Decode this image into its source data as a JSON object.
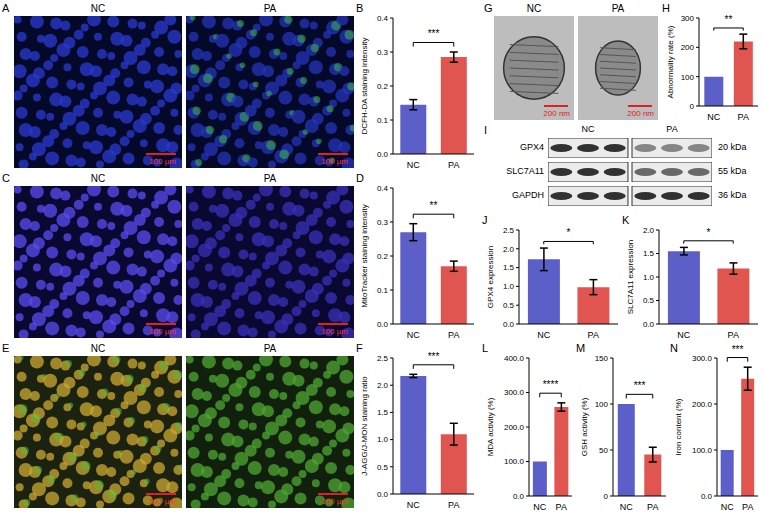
{
  "chart_data": [
    {
      "panel": "B",
      "type": "bar",
      "categories": [
        "NC",
        "PA"
      ],
      "values": [
        0.145,
        0.285
      ],
      "errors": [
        0.015,
        0.015
      ],
      "colors": [
        "#5b5fc7",
        "#e05550"
      ],
      "ylabel": "DCFH-DA staining intensity",
      "ylim": [
        0,
        0.4
      ],
      "yticks": [
        {
          "value": 0,
          "label": "0.0"
        },
        0.1,
        0.2,
        0.3,
        0.4
      ],
      "significance": "***"
    },
    {
      "panel": "D",
      "type": "bar",
      "categories": [
        "NC",
        "PA"
      ],
      "values": [
        0.27,
        0.17
      ],
      "errors": [
        0.025,
        0.015
      ],
      "colors": [
        "#5b5fc7",
        "#e05550"
      ],
      "ylabel": "MitoTracker staining intensity",
      "ylim": [
        0,
        0.4
      ],
      "yticks": [
        {
          "value": 0,
          "label": "0.0"
        },
        0.1,
        0.2,
        0.3,
        0.4
      ],
      "significance": "**"
    },
    {
      "panel": "F",
      "type": "bar",
      "categories": [
        "NC",
        "PA"
      ],
      "values": [
        2.17,
        1.1
      ],
      "errors": [
        0.03,
        0.2
      ],
      "colors": [
        "#5b5fc7",
        "#e05550"
      ],
      "ylabel": "J-AGG/J-MON staining ratio",
      "ylim": [
        0,
        2.5
      ],
      "yticks": [
        {
          "value": 0,
          "label": "0.0"
        },
        0.5,
        {
          "value": 1,
          "label": "1.0"
        },
        1.5,
        {
          "value": 2,
          "label": "2.0"
        },
        2.5
      ],
      "significance": "***"
    },
    {
      "panel": "H",
      "type": "bar",
      "categories": [
        "NC",
        "PA"
      ],
      "values": [
        100,
        220
      ],
      "errors": [
        0,
        25
      ],
      "colors": [
        "#5b5fc7",
        "#e05550"
      ],
      "ylabel": "Abnormality rate (%)",
      "ylim": [
        0,
        300
      ],
      "yticks": [
        0,
        100,
        200,
        300
      ],
      "significance": "**"
    },
    {
      "panel": "J",
      "type": "bar",
      "categories": [
        "NC",
        "PA"
      ],
      "values": [
        1.72,
        0.98
      ],
      "errors": [
        0.3,
        0.2
      ],
      "colors": [
        "#5b5fc7",
        "#e05550"
      ],
      "ylabel": "GPX4 expression",
      "ylim": [
        0,
        2.5
      ],
      "yticks": [
        {
          "value": 0,
          "label": "0.0"
        },
        0.5,
        {
          "value": 1,
          "label": "1.0"
        },
        1.5,
        {
          "value": 2,
          "label": "2.0"
        },
        2.5
      ],
      "significance": "*"
    },
    {
      "panel": "K",
      "type": "bar",
      "categories": [
        "NC",
        "PA"
      ],
      "values": [
        1.55,
        1.18
      ],
      "errors": [
        0.08,
        0.12
      ],
      "colors": [
        "#5b5fc7",
        "#e05550"
      ],
      "ylabel": "SLC7A11 expression",
      "ylim": [
        0,
        2
      ],
      "yticks": [
        {
          "value": 0,
          "label": "0.0"
        },
        0.5,
        {
          "value": 1,
          "label": "1.0"
        },
        1.5,
        {
          "value": 2,
          "label": "2.0"
        }
      ],
      "significance": "*"
    },
    {
      "panel": "L",
      "type": "bar",
      "categories": [
        "NC",
        "PA"
      ],
      "values": [
        100,
        258
      ],
      "errors": [
        0,
        12
      ],
      "colors": [
        "#5b5fc7",
        "#e05550"
      ],
      "ylabel": "MDA activity (%)",
      "ylim": [
        0,
        400
      ],
      "yticks": [
        {
          "value": 0,
          "label": "0.0"
        },
        {
          "value": 100,
          "label": "100.0"
        },
        {
          "value": 200,
          "label": "200.0"
        },
        {
          "value": 300,
          "label": "300.0"
        },
        {
          "value": 400,
          "label": "400.0"
        }
      ],
      "significance": "****"
    },
    {
      "panel": "M",
      "type": "bar",
      "categories": [
        "NC",
        "PA"
      ],
      "values": [
        100,
        45
      ],
      "errors": [
        0,
        8
      ],
      "colors": [
        "#5b5fc7",
        "#e05550"
      ],
      "ylabel": "GSH activity (%)",
      "ylim": [
        0,
        150
      ],
      "yticks": [
        0,
        50,
        100,
        150
      ],
      "significance": "***"
    },
    {
      "panel": "N",
      "type": "bar",
      "categories": [
        "NC",
        "PA"
      ],
      "values": [
        100,
        255
      ],
      "errors": [
        0,
        25
      ],
      "colors": [
        "#5b5fc7",
        "#e05550"
      ],
      "ylabel": "Iron content (%)",
      "ylim": [
        0,
        300
      ],
      "yticks": [
        {
          "value": 0,
          "label": "0.0"
        },
        {
          "value": 100,
          "label": "100.0"
        },
        {
          "value": 200,
          "label": "200.0"
        },
        {
          "value": 300,
          "label": "300.0"
        }
      ],
      "significance": "***"
    }
  ],
  "image_panels": [
    {
      "panel": "A",
      "images": [
        {
          "title": "NC",
          "scale_bar": "100 μm"
        },
        {
          "title": "PA",
          "scale_bar": "100 μm"
        }
      ]
    },
    {
      "panel": "C",
      "images": [
        {
          "title": "NC",
          "scale_bar": "100 μm"
        },
        {
          "title": "PA",
          "scale_bar": "100 μm"
        }
      ]
    },
    {
      "panel": "E",
      "images": [
        {
          "title": "NC",
          "scale_bar": "100 μm"
        },
        {
          "title": "PA",
          "scale_bar": "100 μm"
        }
      ]
    },
    {
      "panel": "G",
      "images": [
        {
          "title": "NC",
          "scale_bar": "200 nm"
        },
        {
          "title": "PA",
          "scale_bar": "200 nm"
        }
      ]
    }
  ],
  "blot": {
    "panel": "I",
    "columns": [
      "NC",
      "PA"
    ],
    "rows": [
      {
        "protein": "GPX4",
        "size": "20 kDa"
      },
      {
        "protein": "SLC7A11",
        "size": "55 kDa"
      },
      {
        "protein": "GAPDH",
        "size": "36 kDa"
      }
    ]
  }
}
